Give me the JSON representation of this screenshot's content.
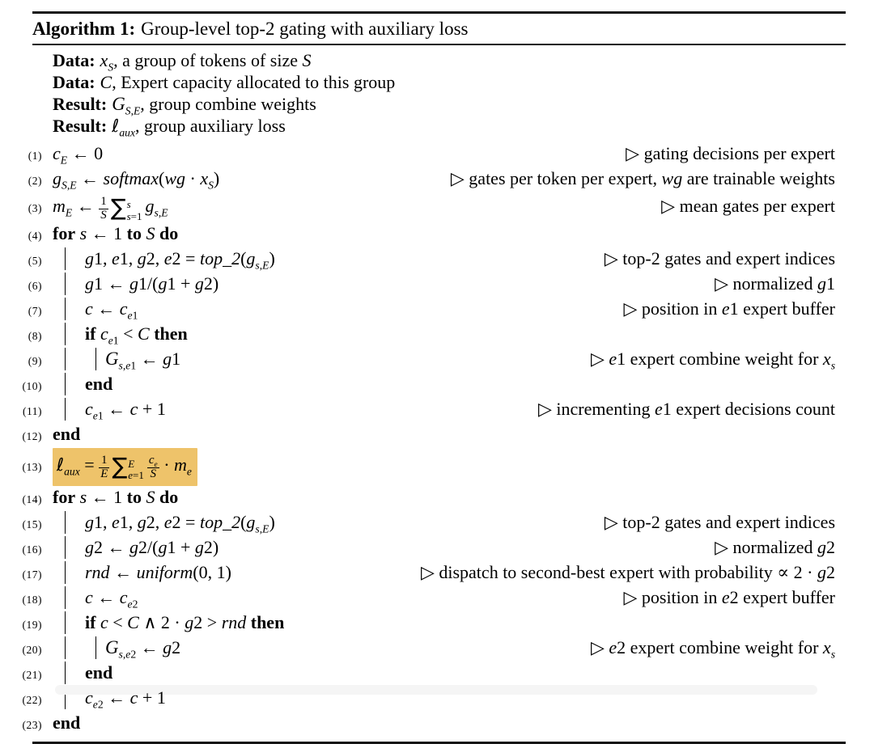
{
  "colors": {
    "highlight": "#eec36a",
    "rule": "#141414",
    "bottom_box": "#f5f5f5"
  },
  "algorithm": {
    "title": {
      "label": "Algorithm 1:",
      "text": "Group-level top-2 gating with auxiliary loss"
    },
    "declarations": [
      {
        "label": "Data:",
        "html": "<i>x<sub>S</sub></i>, a group of tokens of size <i>S</i>"
      },
      {
        "label": "Data:",
        "html": "<i>C</i>, Expert capacity allocated to this group"
      },
      {
        "label": "Result:",
        "html": "<span class='cal'>G</span><sub><i>S</i>,<i>E</i></sub>, group combine weights"
      },
      {
        "label": "Result:",
        "html": "<span class='ell'>ℓ</span><sub><i>aux</i></sub>, group auxiliary loss"
      }
    ],
    "lines": [
      {
        "num": "(1)",
        "guides": 0,
        "tall": false,
        "highlight": false,
        "code": "<i>c<sub>E</sub></i> ← 0",
        "comment": "▷ gating decisions per expert"
      },
      {
        "num": "(2)",
        "guides": 0,
        "tall": false,
        "highlight": false,
        "code": "<i>g</i><sub><i>S</i>,<i>E</i></sub> ← <i>softmax</i>(<i>wg</i> · <i>x<sub>S</sub></i>)",
        "comment": "▷ gates per token per expert, <i>wg</i> are trainable weights"
      },
      {
        "num": "(3)",
        "guides": 0,
        "tall": true,
        "highlight": false,
        "code": "<i>m<sub>E</sub></i> ← <span class='frac'><span class='fn'>1</span><span class='fd'><i>S</i></span></span><span class='sum'>∑</span><span class='lim'><span><i>s</i></span><span><i>s</i>=1</span></span><i>g</i><sub><i>s</i>,<i>E</i></sub>",
        "comment": "▷ mean gates per expert"
      },
      {
        "num": "(4)",
        "guides": 0,
        "tall": false,
        "highlight": false,
        "code": "<b>for</b> <i>s</i> ← 1 <b>to</b> <i>S</i> <b>do</b>",
        "comment": ""
      },
      {
        "num": "(5)",
        "guides": 1,
        "tall": false,
        "highlight": false,
        "code": "<i>g</i>1, <i>e</i>1, <i>g</i>2, <i>e</i>2 = <i>top_2</i>(<i>g</i><sub><i>s</i>,<i>E</i></sub>)",
        "comment": "▷ top-2 gates and expert indices"
      },
      {
        "num": "(6)",
        "guides": 1,
        "tall": false,
        "highlight": false,
        "code": "<i>g</i>1 ← <i>g</i>1/(<i>g</i>1 + <i>g</i>2)",
        "comment": "▷ normalized <i>g</i>1"
      },
      {
        "num": "(7)",
        "guides": 1,
        "tall": false,
        "highlight": false,
        "code": "<i>c</i> ← <i>c</i><sub><i>e</i>1</sub>",
        "comment": "▷ position in <i>e</i>1 expert buffer"
      },
      {
        "num": "(8)",
        "guides": 1,
        "tall": false,
        "highlight": false,
        "code": "<b>if</b> <i>c</i><sub><i>e</i>1</sub> &lt; <i>C</i> <b>then</b>",
        "comment": ""
      },
      {
        "num": "(9)",
        "guides": 2,
        "tall": false,
        "highlight": false,
        "code": "<span class='cal'>G</span><sub><i>s</i>,<i>e</i>1</sub> ← <i>g</i>1",
        "comment": "▷ <i>e</i>1 expert combine weight for <i>x<sub>s</sub></i>"
      },
      {
        "num": "(10)",
        "guides": 1,
        "tall": false,
        "highlight": false,
        "code": "<b>end</b>",
        "comment": ""
      },
      {
        "num": "(11)",
        "guides": 1,
        "tall": false,
        "highlight": false,
        "code": "<i>c</i><sub><i>e</i>1</sub> ← <i>c</i> + 1",
        "comment": "▷ incrementing <i>e</i>1 expert decisions count"
      },
      {
        "num": "(12)",
        "guides": 0,
        "tall": false,
        "highlight": false,
        "code": "<b>end</b>",
        "comment": ""
      },
      {
        "num": "(13)",
        "guides": 0,
        "tall": true,
        "highlight": true,
        "code": "<span class='ell'>ℓ</span><sub><i>aux</i></sub> = <span class='frac'><span class='fn'>1</span><span class='fd'><i>E</i></span></span><span class='sum'>∑</span><span class='lim'><span><i>E</i></span><span><i>e</i>=1</span></span><span class='frac'><span class='fn'><i>c<sub>e</sub></i></span><span class='fd'><i>S</i></span></span> · <i>m<sub>e</sub></i>",
        "comment": ""
      },
      {
        "num": "(14)",
        "guides": 0,
        "tall": false,
        "highlight": false,
        "code": "<b>for</b> <i>s</i> ← 1 <b>to</b> <i>S</i> <b>do</b>",
        "comment": ""
      },
      {
        "num": "(15)",
        "guides": 1,
        "tall": false,
        "highlight": false,
        "code": "<i>g</i>1, <i>e</i>1, <i>g</i>2, <i>e</i>2 = <i>top_2</i>(<i>g</i><sub><i>s</i>,<i>E</i></sub>)",
        "comment": "▷ top-2 gates and expert indices"
      },
      {
        "num": "(16)",
        "guides": 1,
        "tall": false,
        "highlight": false,
        "code": "<i>g</i>2 ← <i>g</i>2/(<i>g</i>1 + <i>g</i>2)",
        "comment": "▷ normalized <i>g</i>2"
      },
      {
        "num": "(17)",
        "guides": 1,
        "tall": false,
        "highlight": false,
        "code": "<i>rnd</i> ← <i>uniform</i>(0, 1)",
        "comment": "▷ dispatch to second-best expert with probability ∝ 2 · <i>g</i>2"
      },
      {
        "num": "(18)",
        "guides": 1,
        "tall": false,
        "highlight": false,
        "code": "<i>c</i> ← <i>c</i><sub><i>e</i>2</sub>",
        "comment": "▷ position in <i>e</i>2 expert buffer"
      },
      {
        "num": "(19)",
        "guides": 1,
        "tall": false,
        "highlight": false,
        "code": "<b>if</b> <i>c</i> &lt; <i>C</i> ∧ 2 · <i>g</i>2 &gt; <i>rnd</i> <b>then</b>",
        "comment": ""
      },
      {
        "num": "(20)",
        "guides": 2,
        "tall": false,
        "highlight": false,
        "code": "<span class='cal'>G</span><sub><i>s</i>,<i>e</i>2</sub> ← <i>g</i>2",
        "comment": "▷ <i>e</i>2 expert combine weight for <i>x<sub>s</sub></i>"
      },
      {
        "num": "(21)",
        "guides": 1,
        "tall": false,
        "highlight": false,
        "code": "<b>end</b>",
        "comment": ""
      },
      {
        "num": "(22)",
        "guides": 1,
        "tall": false,
        "highlight": false,
        "code": "<i>c</i><sub><i>e</i>2</sub> ← <i>c</i> + 1",
        "comment": ""
      },
      {
        "num": "(23)",
        "guides": 0,
        "tall": false,
        "highlight": false,
        "code": "<b>end</b>",
        "comment": ""
      }
    ]
  }
}
